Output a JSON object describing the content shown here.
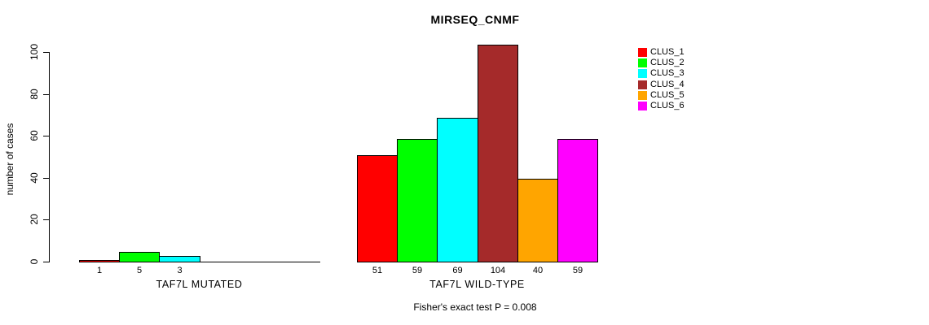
{
  "chart_data": {
    "type": "bar",
    "title": "MIRSEQ_CNMF",
    "ylabel": "number of cases",
    "ylim": [
      0,
      100
    ],
    "yticks": [
      0,
      20,
      40,
      60,
      80,
      100
    ],
    "grid": false,
    "legend_position": "top-right",
    "annotation": "Fisher's exact test P = 0.008",
    "clusters": [
      {
        "name": "CLUS_1",
        "color": "#ff0000"
      },
      {
        "name": "CLUS_2",
        "color": "#00ff00"
      },
      {
        "name": "CLUS_3",
        "color": "#00ffff"
      },
      {
        "name": "CLUS_4",
        "color": "#a52a2a"
      },
      {
        "name": "CLUS_5",
        "color": "#ffa500"
      },
      {
        "name": "CLUS_6",
        "color": "#ff00ff"
      }
    ],
    "groups": [
      {
        "label": "TAF7L MUTATED",
        "values": [
          1,
          5,
          3,
          0,
          0,
          0
        ]
      },
      {
        "label": "TAF7L WILD-TYPE",
        "values": [
          51,
          59,
          69,
          104,
          40,
          59
        ]
      }
    ]
  }
}
